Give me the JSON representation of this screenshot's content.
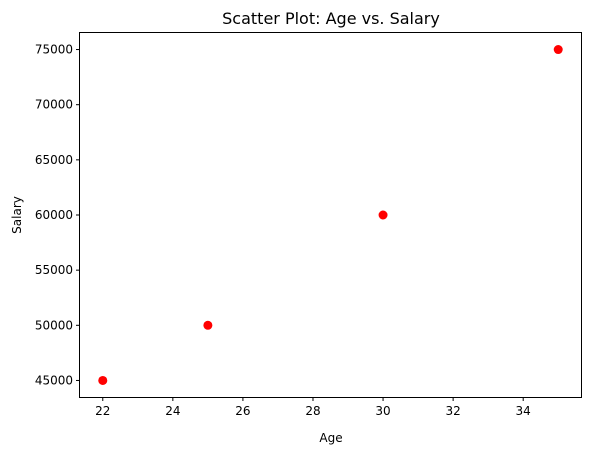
{
  "chart_data": {
    "type": "scatter",
    "title": "Scatter Plot: Age vs. Salary",
    "xlabel": "Age",
    "ylabel": "Salary",
    "x": [
      22,
      25,
      30,
      35
    ],
    "y": [
      45000,
      50000,
      60000,
      75000
    ],
    "xlim": [
      21.35,
      35.65
    ],
    "ylim": [
      43500,
      76500
    ],
    "xticks": [
      22,
      24,
      26,
      28,
      30,
      32,
      34
    ],
    "yticks": [
      45000,
      50000,
      55000,
      60000,
      65000,
      70000,
      75000
    ],
    "marker_color": "#ff0000",
    "grid": false,
    "legend": "none"
  }
}
